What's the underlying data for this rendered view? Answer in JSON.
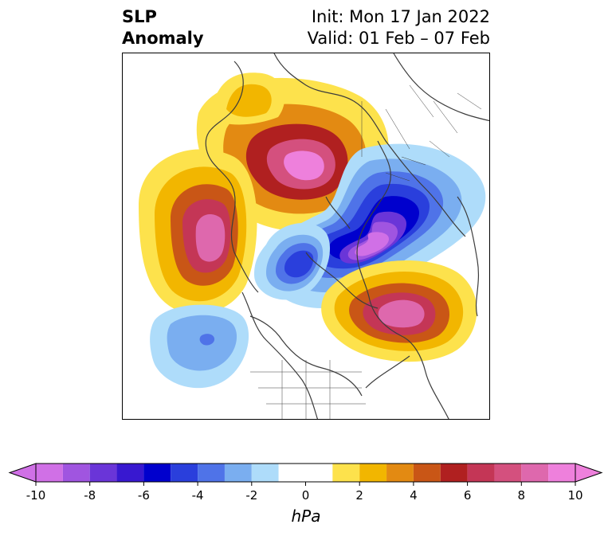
{
  "title": {
    "variable": "SLP",
    "field": "Anomaly",
    "init": "Init: Mon 17 Jan 2022",
    "valid": "Valid: 01 Feb – 07 Feb"
  },
  "colorbar": {
    "label": "hPa",
    "ticks": [
      "-10",
      "-8",
      "-6",
      "-4",
      "-2",
      "0",
      "2",
      "4",
      "6",
      "8",
      "10"
    ],
    "bins": [
      {
        "range": "-10 – -9",
        "color": "#d070e6"
      },
      {
        "range": "-9 – -8",
        "color": "#a055e0"
      },
      {
        "range": "-8 – -7",
        "color": "#6a35d8"
      },
      {
        "range": "-7 – -6",
        "color": "#3818d0"
      },
      {
        "range": "-6 – -5",
        "color": "#0000cd"
      },
      {
        "range": "-5 – -4",
        "color": "#2a3fdc"
      },
      {
        "range": "-4 – -3",
        "color": "#4f73e8"
      },
      {
        "range": "-3 – -2",
        "color": "#7aaef0"
      },
      {
        "range": "-2 – -1",
        "color": "#aedcfa"
      },
      {
        "range": "-1 – 1",
        "color": "#ffffff"
      },
      {
        "range": "1 – 2",
        "color": "#fde24c"
      },
      {
        "range": "2 – 3",
        "color": "#f2b600"
      },
      {
        "range": "3 – 4",
        "color": "#e38a12"
      },
      {
        "range": "4 – 5",
        "color": "#c95616"
      },
      {
        "range": "5 – 6",
        "color": "#b02020"
      },
      {
        "range": "6 – 7",
        "color": "#c43656"
      },
      {
        "range": "7 – 8",
        "color": "#d4507e"
      },
      {
        "range": "8 – 9",
        "color": "#de68ad"
      },
      {
        "range": "9 – 10",
        "color": "#ee80dc"
      }
    ],
    "extend_low_color": "#d070e6",
    "extend_high_color": "#ee80dc"
  },
  "map": {
    "projection": "north-polar-stereographic",
    "coastline_color": "#3c3c3c",
    "anomalies": [
      {
        "name": "eurasia-high",
        "type": "positive",
        "peak": 10,
        "color_key": "high"
      },
      {
        "name": "north-pacific-high",
        "type": "positive",
        "peak": 9,
        "color_key": "high"
      },
      {
        "name": "north-atlantic-high",
        "type": "positive",
        "peak": 9,
        "color_key": "high"
      },
      {
        "name": "polar-low",
        "type": "negative",
        "peak": -10,
        "color_key": "low"
      },
      {
        "name": "east-pacific-low",
        "type": "negative",
        "peak": -4,
        "color_key": "low"
      }
    ]
  }
}
